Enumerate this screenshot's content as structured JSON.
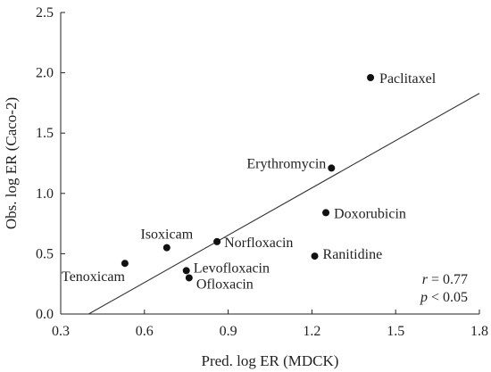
{
  "chart_data": {
    "type": "scatter",
    "xlabel": "Pred. log ER (MDCK)",
    "ylabel": "Obs. log ER (Caco-2)",
    "xlim": [
      0.3,
      1.8
    ],
    "ylim": [
      0.0,
      2.5
    ],
    "x_ticks": [
      "0.3",
      "0.6",
      "0.9",
      "1.2",
      "1.5",
      "1.8"
    ],
    "y_ticks": [
      "0.0",
      "0.5",
      "1.0",
      "1.5",
      "2.0",
      "2.5"
    ],
    "grid": false,
    "points": [
      {
        "label": "Paclitaxel",
        "x": 1.41,
        "y": 1.96
      },
      {
        "label": "Erythromycin",
        "x": 1.27,
        "y": 1.21
      },
      {
        "label": "Doxorubicin",
        "x": 1.25,
        "y": 0.84
      },
      {
        "label": "Ranitidine",
        "x": 1.21,
        "y": 0.48
      },
      {
        "label": "Norfloxacin",
        "x": 0.86,
        "y": 0.6
      },
      {
        "label": "Isoxicam",
        "x": 0.68,
        "y": 0.55
      },
      {
        "label": "Levofloxacin",
        "x": 0.75,
        "y": 0.36
      },
      {
        "label": "Ofloxacin",
        "x": 0.76,
        "y": 0.3
      },
      {
        "label": "Tenoxicam",
        "x": 0.53,
        "y": 0.42
      }
    ],
    "fit_line": {
      "x": [
        0.4,
        1.8
      ],
      "y": [
        0.0,
        1.83
      ]
    },
    "stats": {
      "r_symbol": "r",
      "r_text": " = 0.77",
      "p_symbol": "p",
      "p_text": " < 0.05"
    }
  },
  "colors": {
    "points": "#111111",
    "axes": "#222222"
  }
}
